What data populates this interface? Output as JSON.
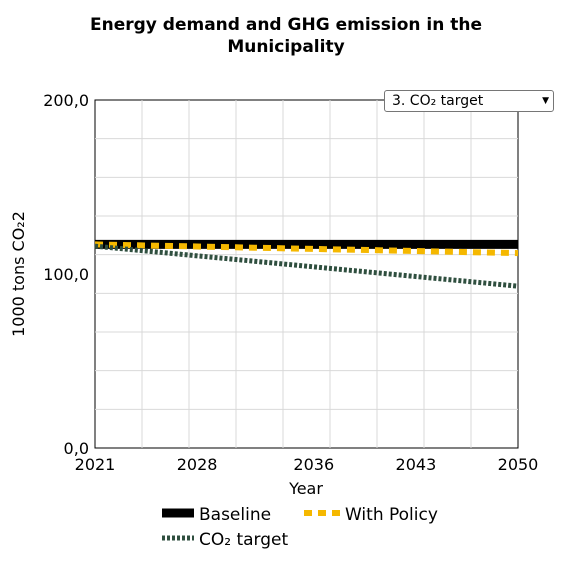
{
  "chart_data": {
    "type": "line",
    "title_lines": [
      "Energy demand and GHG emission in the",
      "Municipality"
    ],
    "xlabel": "Year",
    "ylabel": "1000 tons CO₂2",
    "xlim": [
      2021,
      2050
    ],
    "ylim": [
      0,
      200
    ],
    "x_ticks": [
      2021,
      2028,
      2036,
      2043,
      2050
    ],
    "x_tick_labels": [
      "2021",
      "2028",
      "2036",
      "2043",
      "2050"
    ],
    "y_ticks": [
      0,
      100,
      200
    ],
    "y_tick_labels": [
      "0,0",
      "100,0",
      "200,0"
    ],
    "grid": true,
    "legend_position": "bottom",
    "series": [
      {
        "name": "Baseline",
        "color": "#000000",
        "style": "solid",
        "x": [
          2021,
          2050
        ],
        "y": [
          117,
          117
        ]
      },
      {
        "name": "With Policy",
        "color": "#f5b800",
        "style": "dashed",
        "x": [
          2021,
          2050
        ],
        "y": [
          117,
          112
        ]
      },
      {
        "name": "CO₂ target",
        "color": "#2f4f3f",
        "style": "dotted",
        "x": [
          2021,
          2050
        ],
        "y": [
          116,
          93
        ]
      }
    ]
  },
  "selector": {
    "value": "3. CO₂ target"
  }
}
